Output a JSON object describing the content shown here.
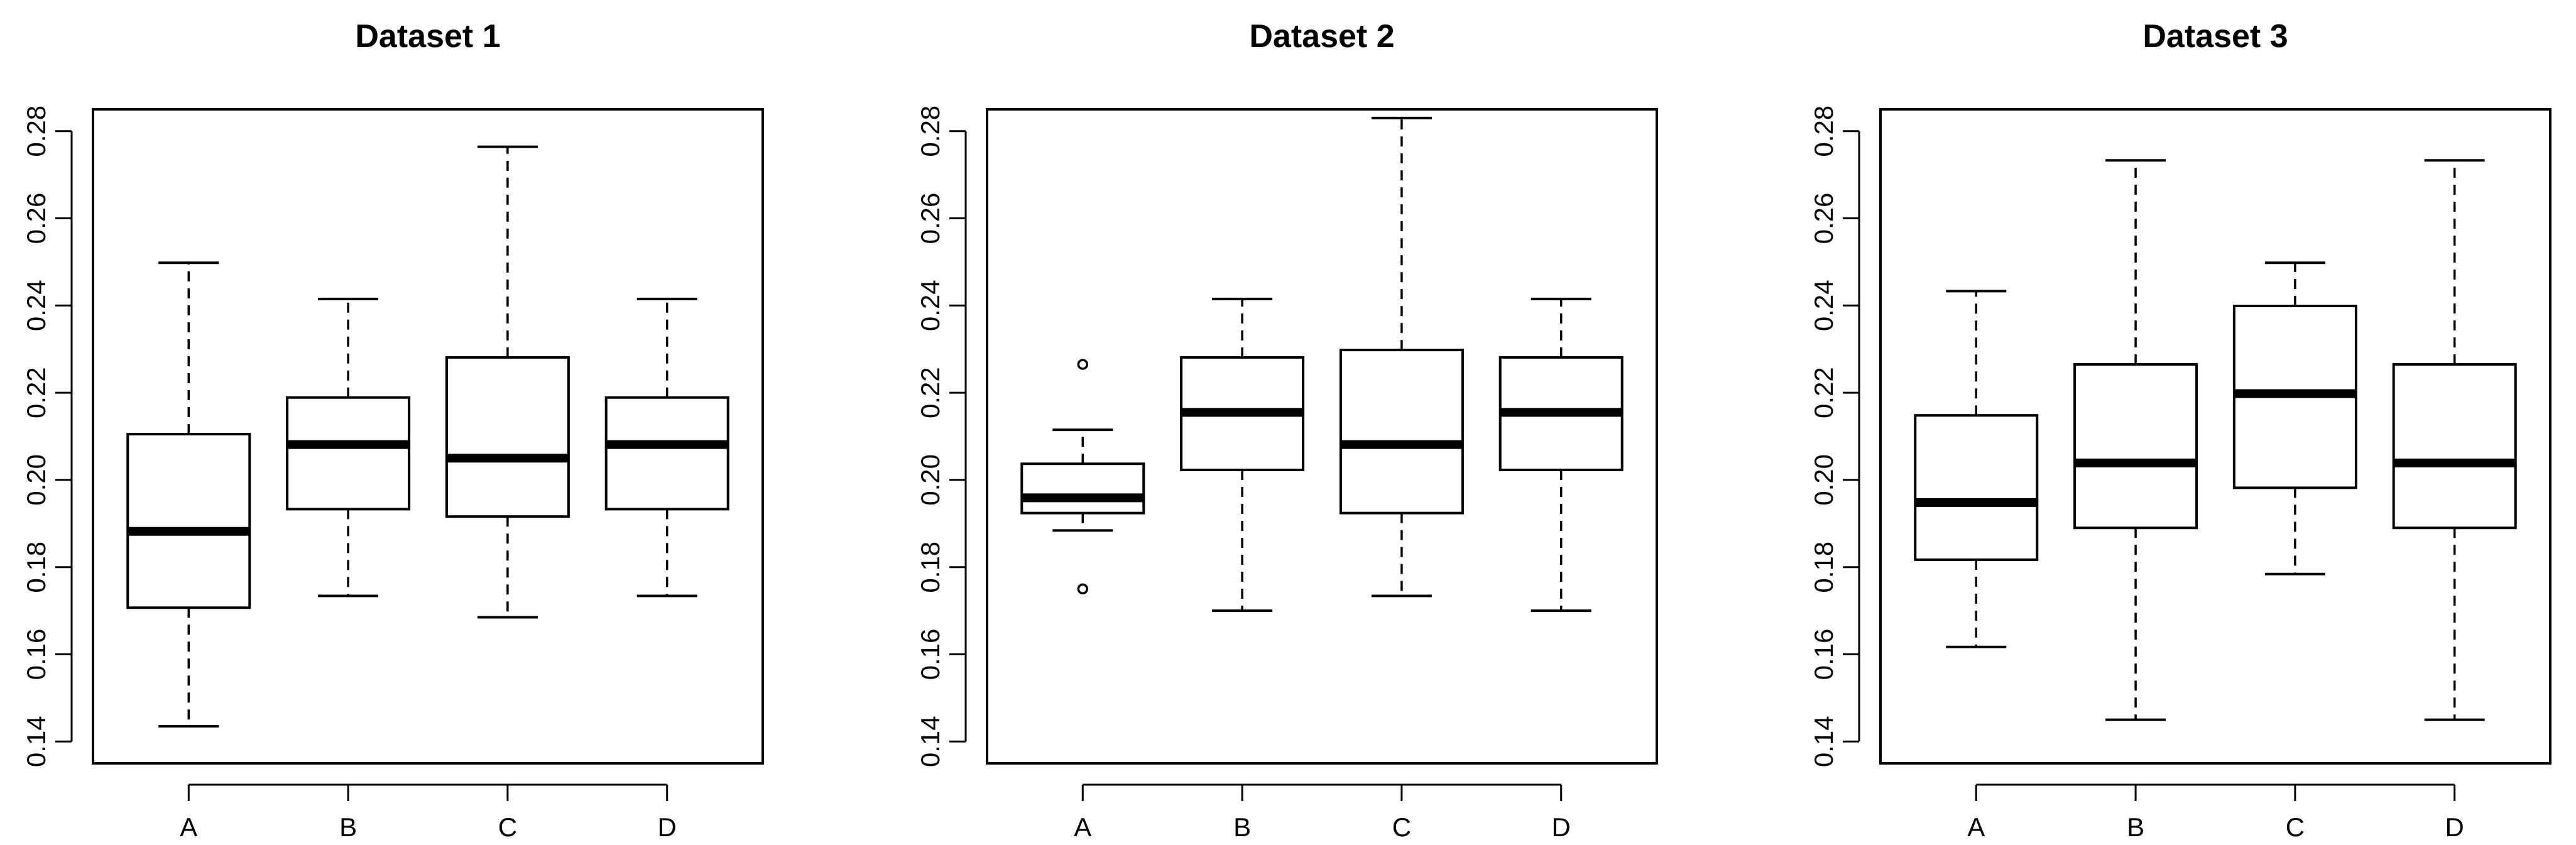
{
  "chart_data": [
    {
      "type": "boxplot",
      "title": "Dataset 1",
      "categories": [
        "A",
        "B",
        "C",
        "D"
      ],
      "ylim": [
        0.135,
        0.285
      ],
      "yticks": [
        "0.14",
        "0.16",
        "0.18",
        "0.20",
        "0.22",
        "0.24",
        "0.26",
        "0.28"
      ],
      "boxes": [
        {
          "min": 0.1435,
          "q1": 0.1707,
          "median": 0.1882,
          "q3": 0.2105,
          "max": 0.2498,
          "outliers": []
        },
        {
          "min": 0.1734,
          "q1": 0.1933,
          "median": 0.2081,
          "q3": 0.2189,
          "max": 0.2415,
          "outliers": []
        },
        {
          "min": 0.1685,
          "q1": 0.1916,
          "median": 0.205,
          "q3": 0.2281,
          "max": 0.2764,
          "outliers": []
        },
        {
          "min": 0.1734,
          "q1": 0.1933,
          "median": 0.2081,
          "q3": 0.2189,
          "max": 0.2415,
          "outliers": []
        }
      ]
    },
    {
      "type": "boxplot",
      "title": "Dataset 2",
      "categories": [
        "A",
        "B",
        "C",
        "D"
      ],
      "ylim": [
        0.135,
        0.285
      ],
      "yticks": [
        "0.14",
        "0.16",
        "0.18",
        "0.20",
        "0.22",
        "0.24",
        "0.26",
        "0.28"
      ],
      "boxes": [
        {
          "min": 0.1884,
          "q1": 0.1924,
          "median": 0.1959,
          "q3": 0.2037,
          "max": 0.2115,
          "outliers": [
            0.2265,
            0.175
          ]
        },
        {
          "min": 0.17,
          "q1": 0.2023,
          "median": 0.2155,
          "q3": 0.2281,
          "max": 0.2415,
          "outliers": []
        },
        {
          "min": 0.1734,
          "q1": 0.1924,
          "median": 0.2081,
          "q3": 0.2298,
          "max": 0.283,
          "outliers": []
        },
        {
          "min": 0.17,
          "q1": 0.2023,
          "median": 0.2155,
          "q3": 0.2281,
          "max": 0.2415,
          "outliers": []
        }
      ]
    },
    {
      "type": "boxplot",
      "title": "Dataset 3",
      "categories": [
        "A",
        "B",
        "C",
        "D"
      ],
      "ylim": [
        0.135,
        0.285
      ],
      "yticks": [
        "0.14",
        "0.16",
        "0.18",
        "0.20",
        "0.22",
        "0.24",
        "0.26",
        "0.28"
      ],
      "boxes": [
        {
          "min": 0.1617,
          "q1": 0.1817,
          "median": 0.1948,
          "q3": 0.2148,
          "max": 0.2433,
          "outliers": []
        },
        {
          "min": 0.145,
          "q1": 0.189,
          "median": 0.2039,
          "q3": 0.2265,
          "max": 0.2733,
          "outliers": []
        },
        {
          "min": 0.1784,
          "q1": 0.1982,
          "median": 0.2198,
          "q3": 0.2399,
          "max": 0.2498,
          "outliers": []
        },
        {
          "min": 0.145,
          "q1": 0.189,
          "median": 0.2039,
          "q3": 0.2265,
          "max": 0.2733,
          "outliers": []
        }
      ]
    }
  ]
}
